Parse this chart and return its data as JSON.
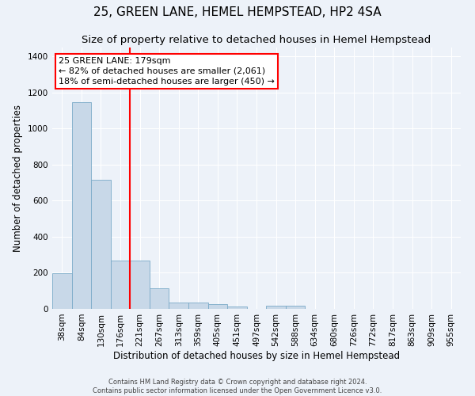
{
  "title": "25, GREEN LANE, HEMEL HEMPSTEAD, HP2 4SA",
  "subtitle": "Size of property relative to detached houses in Hemel Hempstead",
  "xlabel": "Distribution of detached houses by size in Hemel Hempstead",
  "ylabel": "Number of detached properties",
  "footer_line1": "Contains HM Land Registry data © Crown copyright and database right 2024.",
  "footer_line2": "Contains public sector information licensed under the Open Government Licence v3.0.",
  "bar_labels": [
    "38sqm",
    "84sqm",
    "130sqm",
    "176sqm",
    "221sqm",
    "267sqm",
    "313sqm",
    "359sqm",
    "405sqm",
    "451sqm",
    "497sqm",
    "542sqm",
    "588sqm",
    "634sqm",
    "680sqm",
    "726sqm",
    "772sqm",
    "817sqm",
    "863sqm",
    "909sqm",
    "955sqm"
  ],
  "bar_values": [
    196,
    1148,
    718,
    270,
    270,
    113,
    35,
    33,
    27,
    12,
    0,
    18,
    18,
    0,
    0,
    0,
    0,
    0,
    0,
    0,
    0
  ],
  "bar_color": "#c8d8e8",
  "bar_edge_color": "#7aaac8",
  "highlight_line_color": "red",
  "annotation_line1": "25 GREEN LANE: 179sqm",
  "annotation_line2": "← 82% of detached houses are smaller (2,061)",
  "annotation_line3": "18% of semi-detached houses are larger (450) →",
  "ylim": [
    0,
    1450
  ],
  "yticks": [
    0,
    200,
    400,
    600,
    800,
    1000,
    1200,
    1400
  ],
  "background_color": "#edf2f9",
  "grid_color": "white",
  "title_fontsize": 11,
  "subtitle_fontsize": 9.5,
  "xlabel_fontsize": 8.5,
  "ylabel_fontsize": 8.5,
  "tick_fontsize": 7.5,
  "annotation_fontsize": 8,
  "footer_fontsize": 6
}
